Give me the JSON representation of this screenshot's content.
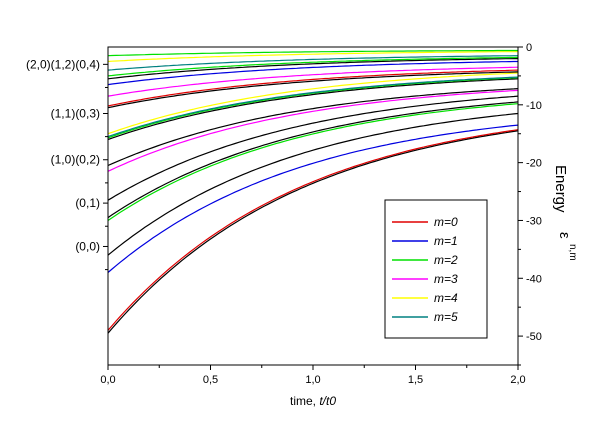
{
  "chart_data": {
    "type": "line",
    "xlabel_prefix": "time, ",
    "xlabel_var": "t/t0",
    "ylabel_main": "Energy",
    "ylabel_var": "ε",
    "ylabel_sub": "n,m",
    "xlim": [
      0,
      2
    ],
    "ylim": [
      -55,
      0
    ],
    "x_ticks": [
      0,
      0.5,
      1.0,
      1.5,
      2.0
    ],
    "x_tick_labels": [
      "0,0",
      "0,5",
      "1,0",
      "1,5",
      "2,0"
    ],
    "y_ticks": [
      0,
      -10,
      -20,
      -30,
      -40,
      -50
    ],
    "y_tick_labels": [
      "0",
      "-10",
      "-20",
      "-30",
      "-40",
      "-50"
    ],
    "level_labels": [
      {
        "text": "(2,0)(1,2)(0,4)",
        "y": -3
      },
      {
        "text": "(1,1)(0,3)",
        "y": -11.5
      },
      {
        "text": "(1,0)(0,2)",
        "y": -19.5
      },
      {
        "text": "(0,1)",
        "y": -27
      },
      {
        "text": "(0,0)",
        "y": -34.5
      }
    ],
    "legend_position": "center-right",
    "legend": [
      {
        "label": "m=0",
        "color": "#e00000"
      },
      {
        "label": "m=1",
        "color": "#0000e0"
      },
      {
        "label": "m=2",
        "color": "#00e000"
      },
      {
        "label": "m=3",
        "color": "#ff00ff"
      },
      {
        "label": "m=4",
        "color": "#ffff00"
      },
      {
        "label": "m=5",
        "color": "#008080"
      }
    ],
    "series": [
      {
        "color": "#000000",
        "values_at_x0_and_x2": [
          -49.5,
          -14.5
        ]
      },
      {
        "color": "#e00000",
        "values_at_x0_and_x2": [
          -49.0,
          -14.3
        ]
      },
      {
        "color": "#0000e0",
        "values_at_x0_and_x2": [
          -39.0,
          -13.5
        ]
      },
      {
        "color": "#000000",
        "values_at_x0_and_x2": [
          -36.0,
          -11.5
        ]
      },
      {
        "color": "#00e000",
        "values_at_x0_and_x2": [
          -30.0,
          -9.8
        ]
      },
      {
        "color": "#000000",
        "values_at_x0_and_x2": [
          -29.5,
          -9.5
        ]
      },
      {
        "color": "#000000",
        "values_at_x0_and_x2": [
          -26.5,
          -8.5
        ]
      },
      {
        "color": "#ff00ff",
        "values_at_x0_and_x2": [
          -21.5,
          -7.5
        ]
      },
      {
        "color": "#000000",
        "values_at_x0_and_x2": [
          -20.5,
          -7.2
        ]
      },
      {
        "color": "#000000",
        "values_at_x0_and_x2": [
          -16.0,
          -5.5
        ]
      },
      {
        "color": "#00e000",
        "values_at_x0_and_x2": [
          -15.7,
          -5.3
        ]
      },
      {
        "color": "#008080",
        "values_at_x0_and_x2": [
          -15.5,
          -5.2
        ]
      },
      {
        "color": "#ffff00",
        "values_at_x0_and_x2": [
          -15.0,
          -4.5
        ]
      },
      {
        "color": "#000000",
        "values_at_x0_and_x2": [
          -10.5,
          -4.3
        ]
      },
      {
        "color": "#e00000",
        "values_at_x0_and_x2": [
          -10.2,
          -4.0
        ]
      },
      {
        "color": "#ff00ff",
        "values_at_x0_and_x2": [
          -8.5,
          -3.5
        ]
      },
      {
        "color": "#0000e0",
        "values_at_x0_and_x2": [
          -6.5,
          -2.5
        ]
      },
      {
        "color": "#000000",
        "values_at_x0_and_x2": [
          -5.5,
          -2.0
        ]
      },
      {
        "color": "#00e000",
        "values_at_x0_and_x2": [
          -5.0,
          -1.8
        ]
      },
      {
        "color": "#008080",
        "values_at_x0_and_x2": [
          -4.0,
          -1.5
        ]
      },
      {
        "color": "#ffff00",
        "values_at_x0_and_x2": [
          -2.5,
          -0.8
        ]
      },
      {
        "color": "#00e000",
        "values_at_x0_and_x2": [
          -1.5,
          -0.6
        ]
      }
    ]
  }
}
